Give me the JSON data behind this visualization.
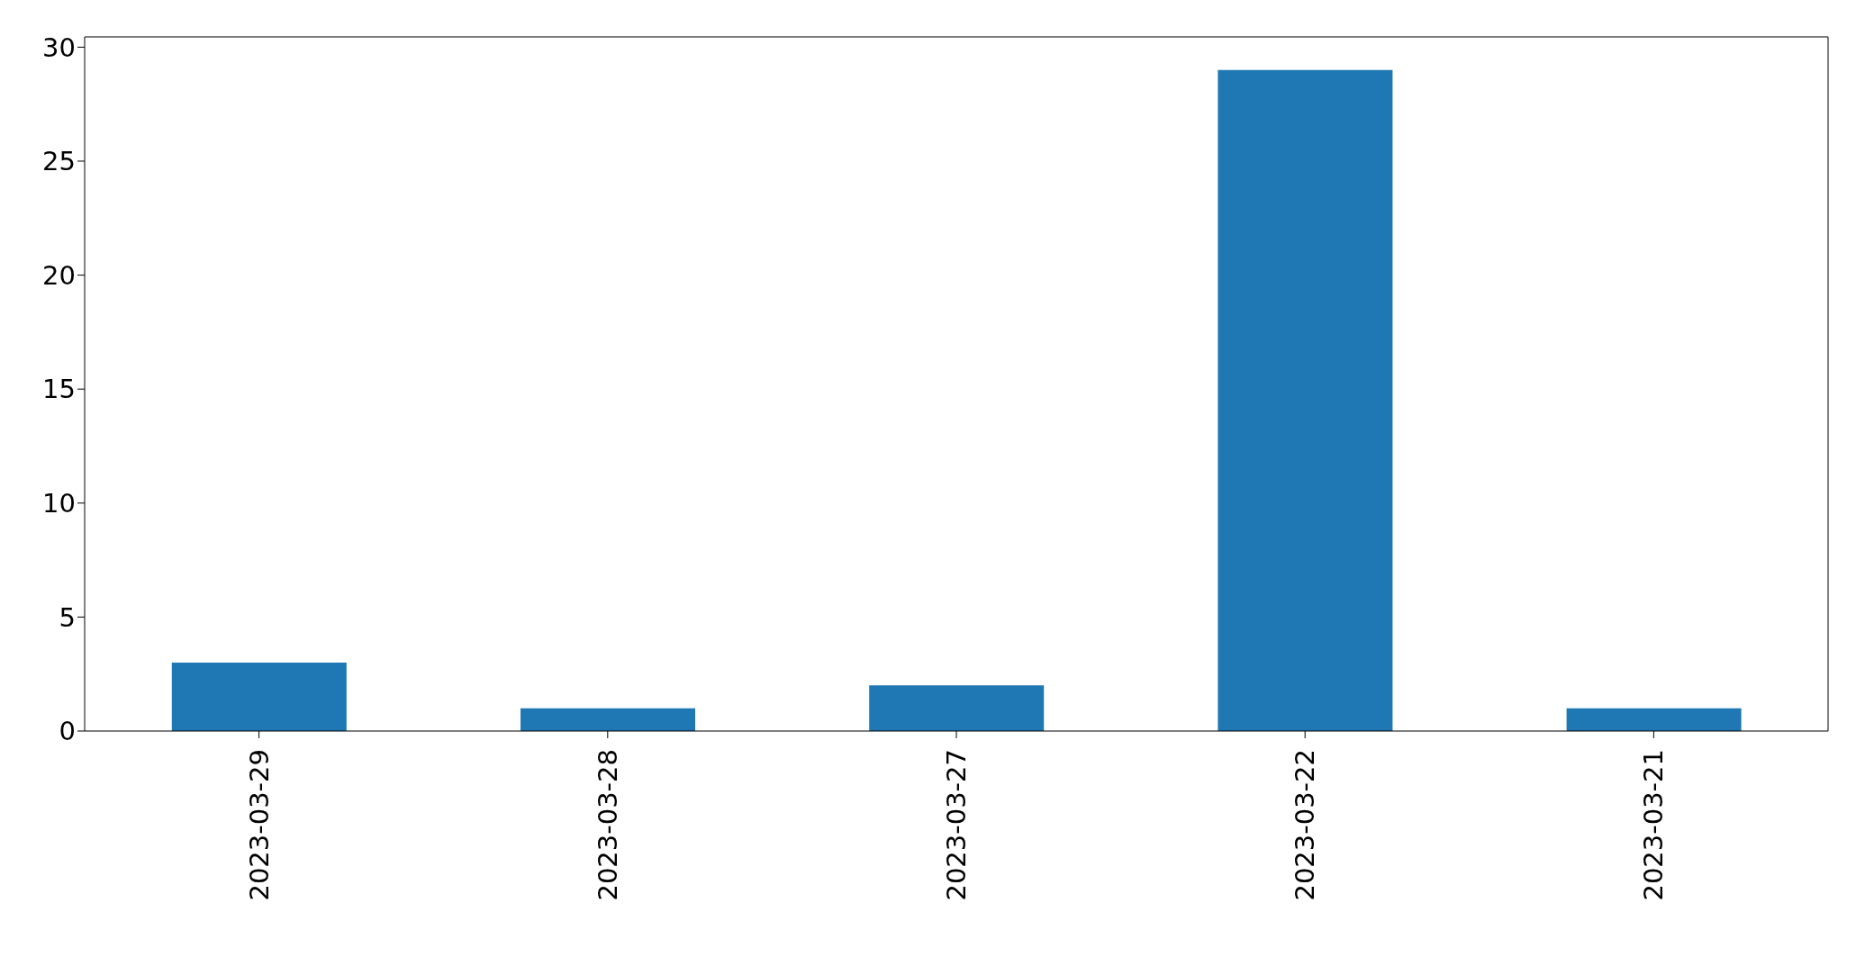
{
  "chart_data": {
    "type": "bar",
    "categories": [
      "2023-03-29",
      "2023-03-28",
      "2023-03-27",
      "2023-03-22",
      "2023-03-21"
    ],
    "values": [
      3,
      1,
      2,
      29,
      1
    ],
    "color": "#1f77b4",
    "ylim": [
      0,
      30.45
    ],
    "yticks": [
      0,
      5,
      10,
      15,
      20,
      25,
      30
    ],
    "grid": false
  }
}
